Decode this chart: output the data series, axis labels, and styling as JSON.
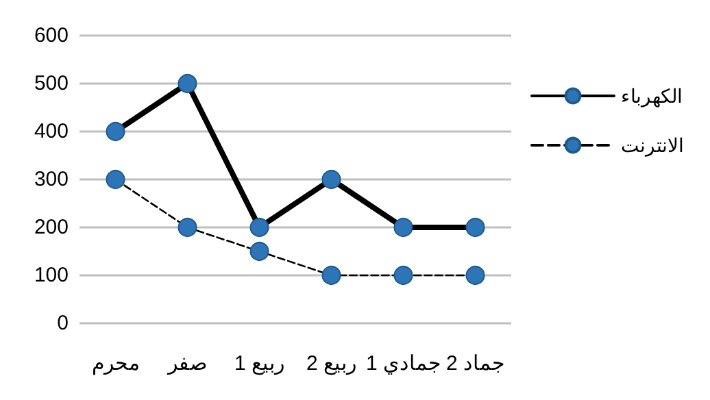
{
  "chart_data": {
    "type": "line",
    "categories": [
      "محرم",
      "صفر",
      "ربيع 1",
      "ربيع 2",
      "جمادي 1",
      "جماد 2"
    ],
    "series": [
      {
        "name": "الكهرباء",
        "color": "#2e75b6",
        "line_style": "solid",
        "values": [
          400,
          500,
          200,
          300,
          200,
          200
        ]
      },
      {
        "name": "الانترنت",
        "color": "#2e75b6",
        "line_style": "dashed",
        "values": [
          300,
          200,
          150,
          100,
          100,
          100
        ]
      }
    ],
    "ylim": [
      0,
      600
    ],
    "yticks": [
      0,
      100,
      200,
      300,
      400,
      500,
      600
    ],
    "grid": "y",
    "legend": "right",
    "marker": "circle"
  }
}
